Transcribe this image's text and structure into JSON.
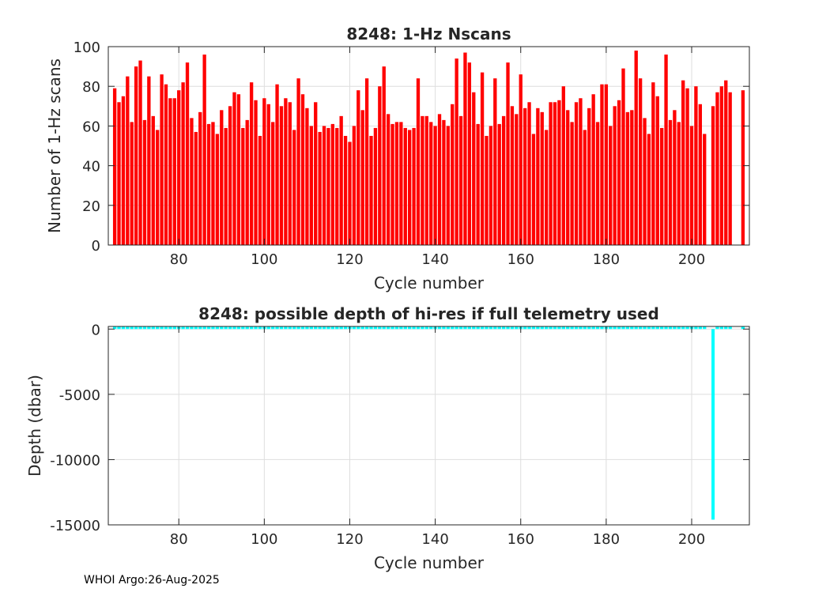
{
  "footer": "WHOI Argo:26-Aug-2025",
  "chart_data": [
    {
      "type": "bar",
      "title": "8248: 1-Hz Nscans",
      "xlabel": "Cycle number",
      "ylabel": "Number of 1-Hz scans",
      "xlim": [
        63.5,
        213.5
      ],
      "ylim": [
        0,
        100
      ],
      "xticks": [
        80,
        100,
        120,
        140,
        160,
        180,
        200
      ],
      "yticks": [
        0,
        20,
        40,
        60,
        80,
        100
      ],
      "grid": true,
      "color": "#ff0000",
      "x": [
        65,
        66,
        67,
        68,
        69,
        70,
        71,
        72,
        73,
        74,
        75,
        76,
        77,
        78,
        79,
        80,
        81,
        82,
        83,
        84,
        85,
        86,
        87,
        88,
        89,
        90,
        91,
        92,
        93,
        94,
        95,
        96,
        97,
        98,
        99,
        100,
        101,
        102,
        103,
        104,
        105,
        106,
        107,
        108,
        109,
        110,
        111,
        112,
        113,
        114,
        115,
        116,
        117,
        118,
        119,
        120,
        121,
        122,
        123,
        124,
        125,
        126,
        127,
        128,
        129,
        130,
        131,
        132,
        133,
        134,
        135,
        136,
        137,
        138,
        139,
        140,
        141,
        142,
        143,
        144,
        145,
        146,
        147,
        148,
        149,
        150,
        151,
        152,
        153,
        154,
        155,
        156,
        157,
        158,
        159,
        160,
        161,
        162,
        163,
        164,
        165,
        166,
        167,
        168,
        169,
        170,
        171,
        172,
        173,
        174,
        175,
        176,
        177,
        178,
        179,
        180,
        181,
        182,
        183,
        184,
        185,
        186,
        187,
        188,
        189,
        190,
        191,
        192,
        193,
        194,
        195,
        196,
        197,
        198,
        199,
        200,
        201,
        202,
        203,
        205,
        206,
        207,
        208,
        209,
        212
      ],
      "values": [
        79,
        72,
        75,
        85,
        62,
        90,
        93,
        63,
        85,
        65,
        58,
        86,
        81,
        74,
        74,
        78,
        82,
        92,
        64,
        57,
        67,
        96,
        61,
        62,
        56,
        68,
        59,
        70,
        77,
        76,
        59,
        63,
        82,
        73,
        55,
        74,
        71,
        62,
        81,
        70,
        74,
        72,
        58,
        84,
        76,
        69,
        60,
        72,
        57,
        60,
        59,
        61,
        59,
        65,
        55,
        52,
        60,
        78,
        68,
        84,
        55,
        59,
        80,
        90,
        66,
        61,
        62,
        62,
        59,
        58,
        59,
        84,
        65,
        65,
        62,
        60,
        66,
        63,
        60,
        71,
        94,
        65,
        97,
        92,
        77,
        61,
        87,
        55,
        60,
        84,
        61,
        65,
        92,
        70,
        66,
        86,
        69,
        72,
        56,
        69,
        67,
        58,
        72,
        72,
        73,
        80,
        68,
        62,
        72,
        74,
        58,
        69,
        76,
        62,
        81,
        81,
        60,
        70,
        73,
        89,
        67,
        68,
        98,
        84,
        64,
        56,
        82,
        75,
        59,
        96,
        63,
        68,
        62,
        83,
        79,
        60,
        80,
        71,
        56,
        70,
        77,
        80,
        83,
        77,
        78
      ]
    },
    {
      "type": "bar",
      "title": "8248: possible depth of hi-res if full telemetry used",
      "xlabel": "Cycle number",
      "ylabel": "Depth (dbar)",
      "xlim": [
        63.5,
        213.5
      ],
      "ylim": [
        -15000,
        200
      ],
      "xticks": [
        80,
        100,
        120,
        140,
        160,
        180,
        200
      ],
      "yticks": [
        0,
        -5000,
        -10000,
        -15000
      ],
      "grid": true,
      "color": "#00ffff",
      "x": [
        65,
        66,
        67,
        68,
        69,
        70,
        71,
        72,
        73,
        74,
        75,
        76,
        77,
        78,
        79,
        80,
        81,
        82,
        83,
        84,
        85,
        86,
        87,
        88,
        89,
        90,
        91,
        92,
        93,
        94,
        95,
        96,
        97,
        98,
        99,
        100,
        101,
        102,
        103,
        104,
        105,
        106,
        107,
        108,
        109,
        110,
        111,
        112,
        113,
        114,
        115,
        116,
        117,
        118,
        119,
        120,
        121,
        122,
        123,
        124,
        125,
        126,
        127,
        128,
        129,
        130,
        131,
        132,
        133,
        134,
        135,
        136,
        137,
        138,
        139,
        140,
        141,
        142,
        143,
        144,
        145,
        146,
        147,
        148,
        149,
        150,
        151,
        152,
        153,
        154,
        155,
        156,
        157,
        158,
        159,
        160,
        161,
        162,
        163,
        164,
        165,
        166,
        167,
        168,
        169,
        170,
        171,
        172,
        173,
        174,
        175,
        176,
        177,
        178,
        179,
        180,
        181,
        182,
        183,
        184,
        185,
        186,
        187,
        188,
        189,
        190,
        191,
        192,
        193,
        194,
        195,
        196,
        197,
        198,
        199,
        200,
        201,
        202,
        203,
        205,
        206,
        207,
        208,
        209,
        212
      ],
      "values": [
        200,
        200,
        200,
        200,
        200,
        200,
        200,
        200,
        200,
        200,
        200,
        200,
        200,
        200,
        200,
        200,
        200,
        200,
        200,
        200,
        200,
        200,
        200,
        200,
        200,
        200,
        200,
        200,
        200,
        200,
        200,
        200,
        200,
        200,
        200,
        200,
        200,
        200,
        200,
        200,
        200,
        200,
        200,
        200,
        200,
        200,
        200,
        200,
        200,
        200,
        200,
        200,
        200,
        200,
        200,
        200,
        200,
        200,
        200,
        200,
        200,
        200,
        200,
        200,
        200,
        200,
        200,
        200,
        200,
        200,
        200,
        200,
        200,
        200,
        200,
        200,
        200,
        200,
        200,
        200,
        200,
        200,
        200,
        200,
        200,
        200,
        200,
        200,
        200,
        200,
        200,
        200,
        200,
        200,
        200,
        200,
        200,
        200,
        200,
        200,
        200,
        200,
        200,
        200,
        200,
        200,
        200,
        200,
        200,
        200,
        200,
        200,
        200,
        200,
        200,
        200,
        200,
        200,
        200,
        200,
        200,
        200,
        200,
        200,
        200,
        200,
        200,
        200,
        200,
        200,
        200,
        200,
        200,
        200,
        200,
        200,
        200,
        200,
        200,
        -14600,
        200,
        200,
        200,
        200,
        200
      ]
    }
  ]
}
